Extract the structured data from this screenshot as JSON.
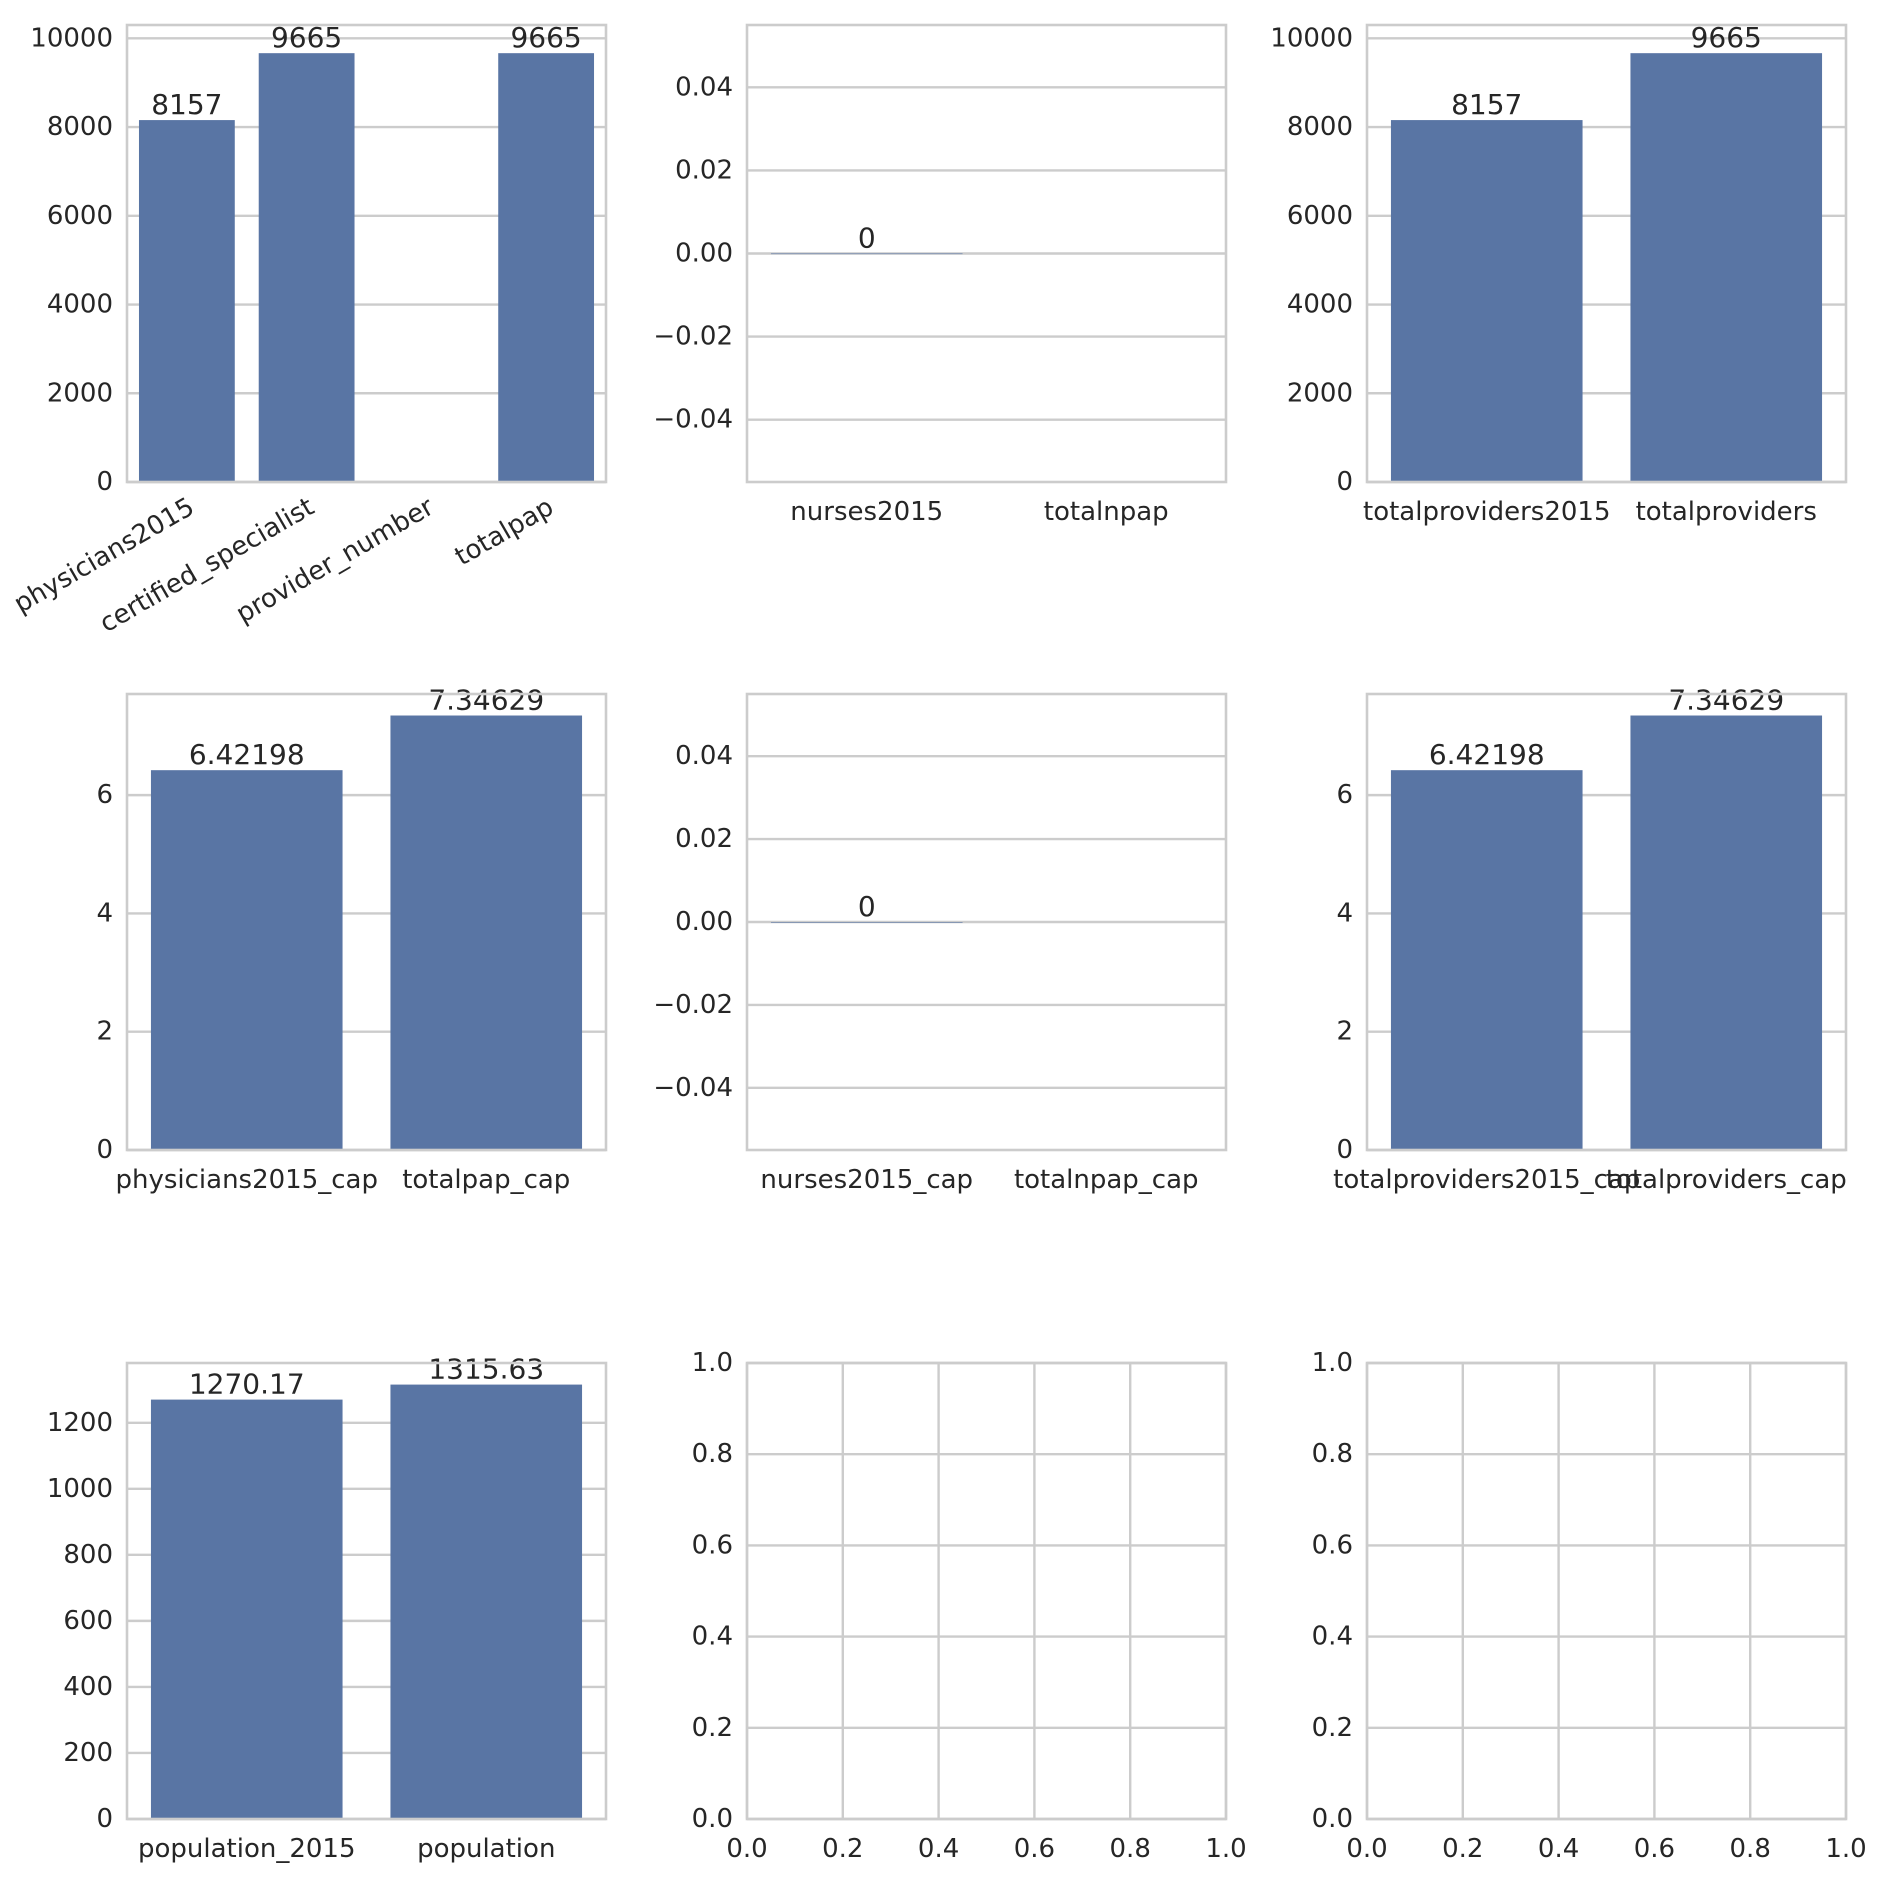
{
  "style": {
    "bar_color": "#5975a4",
    "grid_color": "#cccccc",
    "spine_color": "#cccccc",
    "text_color": "#262626",
    "background": "#ffffff"
  },
  "chart_data": [
    {
      "type": "bar",
      "categories": [
        "physicians2015",
        "certified_specialist",
        "provider_number",
        "totalpap"
      ],
      "values": [
        8157,
        9665,
        null,
        9665
      ],
      "bar_labels": [
        "8157",
        "9665",
        null,
        "9665"
      ],
      "ylim": [
        0,
        10300
      ],
      "yticks": [
        0,
        2000,
        4000,
        6000,
        8000,
        10000
      ],
      "ytick_labels": [
        "0",
        "2000",
        "4000",
        "6000",
        "8000",
        "10000"
      ],
      "xtick_rotation": 30,
      "grid": "y"
    },
    {
      "type": "bar",
      "categories": [
        "nurses2015",
        "totalnpap"
      ],
      "values": [
        0,
        null
      ],
      "bar_labels": [
        "0",
        null
      ],
      "ylim": [
        -0.055,
        0.055
      ],
      "yticks": [
        -0.04,
        -0.02,
        0.0,
        0.02,
        0.04
      ],
      "ytick_labels": [
        "−0.04",
        "−0.02",
        "0.00",
        "0.02",
        "0.04"
      ],
      "grid": "y"
    },
    {
      "type": "bar",
      "categories": [
        "totalproviders2015",
        "totalproviders"
      ],
      "values": [
        8157,
        9665
      ],
      "bar_labels": [
        "8157",
        "9665"
      ],
      "ylim": [
        0,
        10300
      ],
      "yticks": [
        0,
        2000,
        4000,
        6000,
        8000,
        10000
      ],
      "ytick_labels": [
        "0",
        "2000",
        "4000",
        "6000",
        "8000",
        "10000"
      ],
      "grid": "y"
    },
    {
      "type": "bar",
      "categories": [
        "physicians2015_cap",
        "totalpap_cap"
      ],
      "values": [
        6.42198,
        7.34629
      ],
      "bar_labels": [
        "6.42198",
        "7.34629"
      ],
      "ylim": [
        0,
        7.71
      ],
      "yticks": [
        0,
        2,
        4,
        6
      ],
      "ytick_labels": [
        "0",
        "2",
        "4",
        "6"
      ],
      "grid": "y"
    },
    {
      "type": "bar",
      "categories": [
        "nurses2015_cap",
        "totalnpap_cap"
      ],
      "values": [
        0,
        null
      ],
      "bar_labels": [
        "0",
        null
      ],
      "ylim": [
        -0.055,
        0.055
      ],
      "yticks": [
        -0.04,
        -0.02,
        0.0,
        0.02,
        0.04
      ],
      "ytick_labels": [
        "−0.04",
        "−0.02",
        "0.00",
        "0.02",
        "0.04"
      ],
      "grid": "y"
    },
    {
      "type": "bar",
      "categories": [
        "totalproviders2015_cap",
        "totalproviders_cap"
      ],
      "values": [
        6.42198,
        7.34629
      ],
      "bar_labels": [
        "6.42198",
        "7.34629"
      ],
      "ylim": [
        0,
        7.71
      ],
      "yticks": [
        0,
        2,
        4,
        6
      ],
      "ytick_labels": [
        "0",
        "2",
        "4",
        "6"
      ],
      "grid": "y"
    },
    {
      "type": "bar",
      "categories": [
        "population_2015",
        "population"
      ],
      "values": [
        1270.17,
        1315.63
      ],
      "bar_labels": [
        "1270.17",
        "1315.63"
      ],
      "ylim": [
        0,
        1381
      ],
      "yticks": [
        0,
        200,
        400,
        600,
        800,
        1000,
        1200
      ],
      "ytick_labels": [
        "0",
        "200",
        "400",
        "600",
        "800",
        "1000",
        "1200"
      ],
      "grid": "y"
    },
    {
      "type": "empty",
      "xlim": [
        0,
        1
      ],
      "ylim": [
        0,
        1
      ],
      "xticks": [
        0,
        0.2,
        0.4,
        0.6,
        0.8,
        1.0
      ],
      "xtick_labels": [
        "0.0",
        "0.2",
        "0.4",
        "0.6",
        "0.8",
        "1.0"
      ],
      "yticks": [
        0,
        0.2,
        0.4,
        0.6,
        0.8,
        1.0
      ],
      "ytick_labels": [
        "0.0",
        "0.2",
        "0.4",
        "0.6",
        "0.8",
        "1.0"
      ],
      "grid": "both"
    },
    {
      "type": "empty",
      "xlim": [
        0,
        1
      ],
      "ylim": [
        0,
        1
      ],
      "xticks": [
        0,
        0.2,
        0.4,
        0.6,
        0.8,
        1.0
      ],
      "xtick_labels": [
        "0.0",
        "0.2",
        "0.4",
        "0.6",
        "0.8",
        "1.0"
      ],
      "yticks": [
        0,
        0.2,
        0.4,
        0.6,
        0.8,
        1.0
      ],
      "ytick_labels": [
        "0.0",
        "0.2",
        "0.4",
        "0.6",
        "0.8",
        "1.0"
      ],
      "grid": "both"
    }
  ]
}
